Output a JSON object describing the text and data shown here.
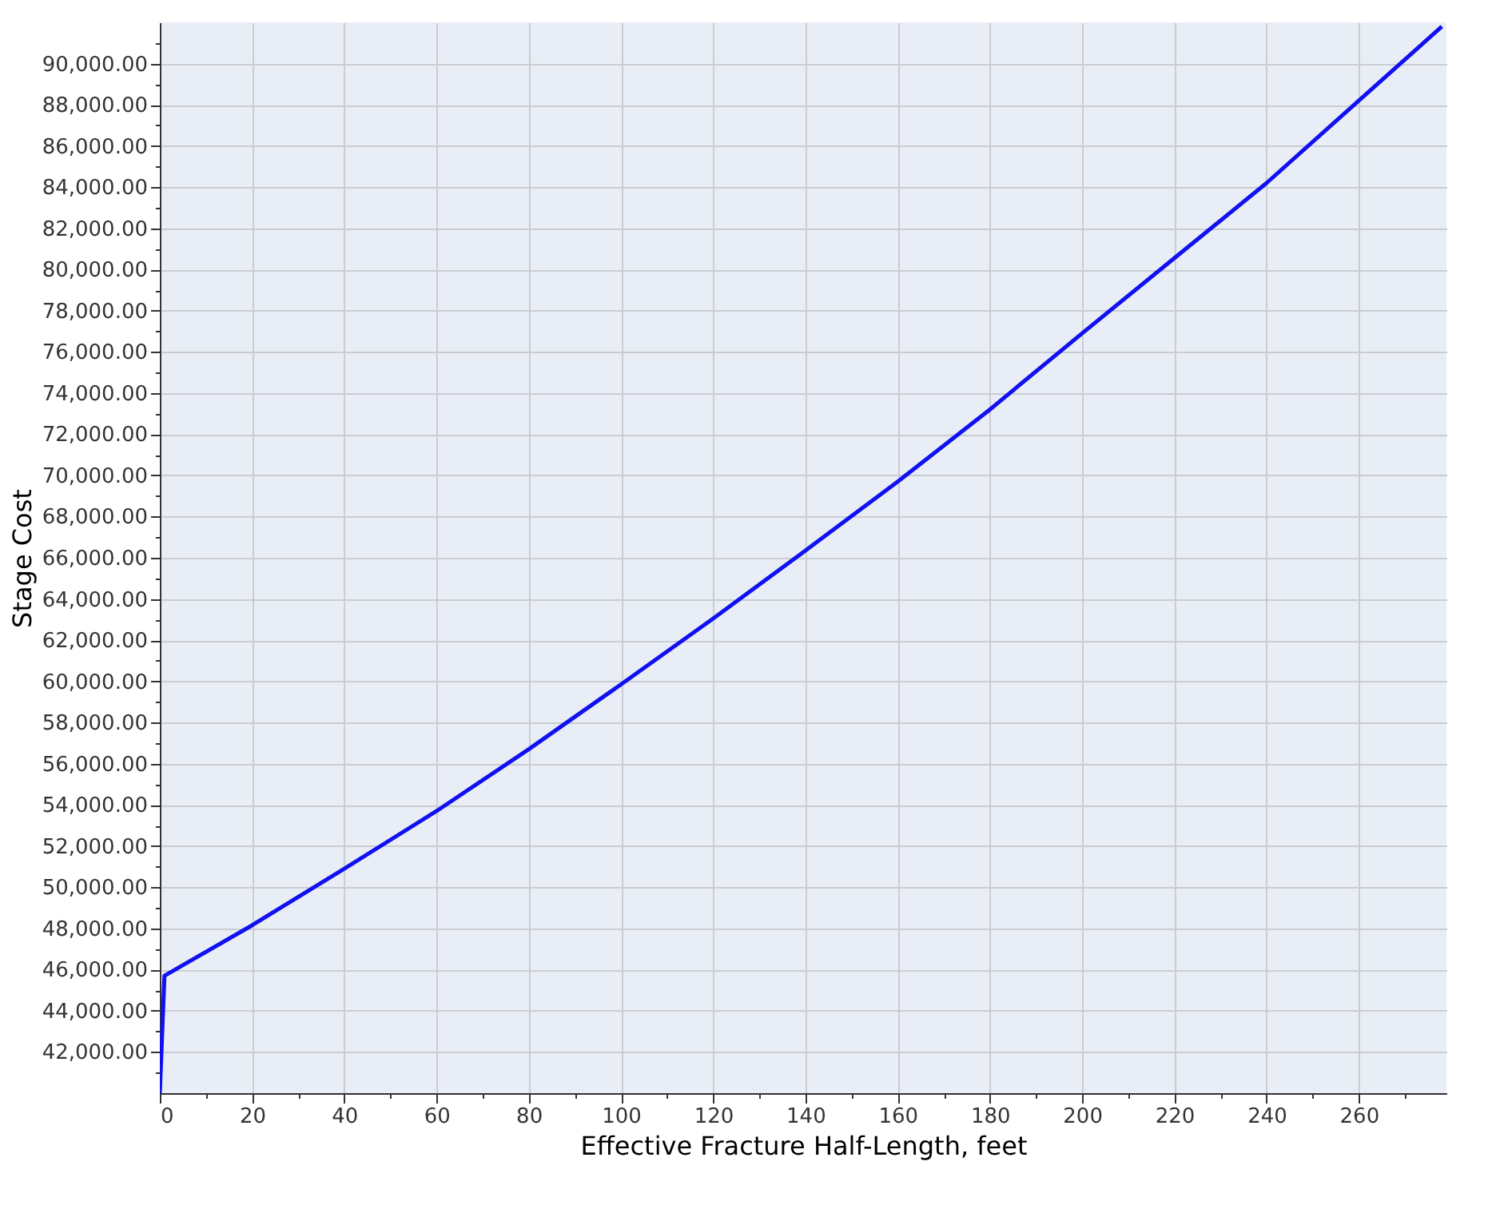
{
  "chart_data": {
    "type": "line",
    "xlabel": "Effective Fracture Half-Length, feet",
    "ylabel": "Stage Cost",
    "x": [
      0,
      1,
      20,
      40,
      60,
      80,
      100,
      120,
      140,
      160,
      180,
      200,
      220,
      240,
      260,
      278
    ],
    "series": [
      {
        "color": "#1010f0",
        "values": [
          40000,
          45700,
          48150,
          50900,
          53700,
          56700,
          59850,
          63050,
          66350,
          69700,
          73200,
          76900,
          80550,
          84200,
          88200,
          91800
        ]
      }
    ],
    "xlim": [
      0,
      279
    ],
    "ylim": [
      40000,
      92000
    ],
    "xticks": [
      0,
      {
        "value": 10,
        "label": null
      },
      20,
      {
        "value": 30,
        "label": null
      },
      40,
      {
        "value": 50,
        "label": null
      },
      60,
      {
        "value": 70,
        "label": null
      },
      80,
      {
        "value": 90,
        "label": null
      },
      100,
      {
        "value": 110,
        "label": null
      },
      120,
      {
        "value": 130,
        "label": null
      },
      140,
      {
        "value": 150,
        "label": null
      },
      160,
      {
        "value": 170,
        "label": null
      },
      180,
      {
        "value": 190,
        "label": null
      },
      200,
      {
        "value": 210,
        "label": null
      },
      220,
      {
        "value": 230,
        "label": null
      },
      240,
      {
        "value": 250,
        "label": null
      },
      260,
      {
        "value": 270,
        "label": null
      }
    ],
    "yticks": [
      {
        "value": 41000,
        "label": null
      },
      {
        "value": 42000,
        "label": "42,000.00"
      },
      {
        "value": 43000,
        "label": null
      },
      {
        "value": 44000,
        "label": "44,000.00"
      },
      {
        "value": 45000,
        "label": null
      },
      {
        "value": 46000,
        "label": "46,000.00"
      },
      {
        "value": 47000,
        "label": null
      },
      {
        "value": 48000,
        "label": "48,000.00"
      },
      {
        "value": 49000,
        "label": null
      },
      {
        "value": 50000,
        "label": "50,000.00"
      },
      {
        "value": 51000,
        "label": null
      },
      {
        "value": 52000,
        "label": "52,000.00"
      },
      {
        "value": 53000,
        "label": null
      },
      {
        "value": 54000,
        "label": "54,000.00"
      },
      {
        "value": 55000,
        "label": null
      },
      {
        "value": 56000,
        "label": "56,000.00"
      },
      {
        "value": 57000,
        "label": null
      },
      {
        "value": 58000,
        "label": "58,000.00"
      },
      {
        "value": 59000,
        "label": null
      },
      {
        "value": 60000,
        "label": "60,000.00"
      },
      {
        "value": 61000,
        "label": null
      },
      {
        "value": 62000,
        "label": "62,000.00"
      },
      {
        "value": 63000,
        "label": null
      },
      {
        "value": 64000,
        "label": "64,000.00"
      },
      {
        "value": 65000,
        "label": null
      },
      {
        "value": 66000,
        "label": "66,000.00"
      },
      {
        "value": 67000,
        "label": null
      },
      {
        "value": 68000,
        "label": "68,000.00"
      },
      {
        "value": 69000,
        "label": null
      },
      {
        "value": 70000,
        "label": "70,000.00"
      },
      {
        "value": 71000,
        "label": null
      },
      {
        "value": 72000,
        "label": "72,000.00"
      },
      {
        "value": 73000,
        "label": null
      },
      {
        "value": 74000,
        "label": "74,000.00"
      },
      {
        "value": 75000,
        "label": null
      },
      {
        "value": 76000,
        "label": "76,000.00"
      },
      {
        "value": 77000,
        "label": null
      },
      {
        "value": 78000,
        "label": "78,000.00"
      },
      {
        "value": 79000,
        "label": null
      },
      {
        "value": 80000,
        "label": "80,000.00"
      },
      {
        "value": 81000,
        "label": null
      },
      {
        "value": 82000,
        "label": "82,000.00"
      },
      {
        "value": 83000,
        "label": null
      },
      {
        "value": 84000,
        "label": "84,000.00"
      },
      {
        "value": 85000,
        "label": null
      },
      {
        "value": 86000,
        "label": "86,000.00"
      },
      {
        "value": 87000,
        "label": null
      },
      {
        "value": 88000,
        "label": "88,000.00"
      },
      {
        "value": 89000,
        "label": null
      },
      {
        "value": 90000,
        "label": "90,000.00"
      },
      {
        "value": 91000,
        "label": null
      }
    ],
    "grid": true,
    "marker": "none",
    "line_style": "solid"
  }
}
